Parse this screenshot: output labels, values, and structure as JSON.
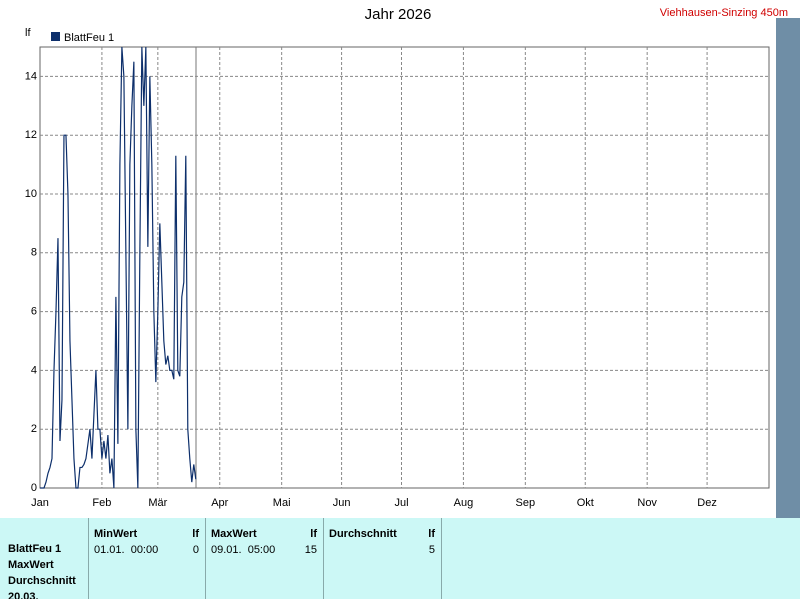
{
  "chart_data": {
    "type": "line",
    "title": "Jahr 2026",
    "station": "Viehhausen-Sinzing 450m",
    "y_label": "lf",
    "series": [
      {
        "name": "BlattFeu 1",
        "color": "#0d2f6b",
        "x": [
          0,
          1,
          2,
          3,
          4,
          5,
          6,
          7,
          8,
          9,
          10,
          11,
          12,
          13,
          14,
          15,
          16,
          17,
          18,
          19,
          20,
          21,
          22,
          23,
          24,
          25,
          26,
          27,
          28,
          29,
          30,
          31,
          32,
          33,
          34,
          35,
          36,
          37,
          38,
          39,
          40,
          41,
          42,
          43,
          44,
          45,
          46,
          47,
          48,
          49,
          50,
          51,
          52,
          53,
          54,
          55,
          56,
          57,
          58,
          59,
          60,
          61,
          62,
          63,
          64,
          65,
          66,
          67,
          68,
          69,
          70,
          71,
          72,
          73,
          74,
          75,
          76,
          77,
          78
        ],
        "values": [
          0,
          0,
          0,
          0.2,
          0.5,
          0.7,
          1,
          4,
          6,
          8.5,
          1.6,
          3,
          12,
          12,
          10,
          5,
          3,
          1,
          0,
          0,
          0.7,
          0.7,
          0.8,
          1,
          1.5,
          2,
          1,
          2.5,
          4,
          2,
          2,
          1,
          1.6,
          1,
          1.8,
          0.5,
          1,
          0,
          6.5,
          1.5,
          11,
          15,
          14,
          8,
          2,
          11,
          13,
          14.5,
          2,
          0,
          8,
          15,
          13,
          15,
          8.2,
          14,
          11,
          6,
          3.6,
          6,
          9,
          7,
          5,
          4.2,
          4.5,
          4,
          4,
          3.7,
          11.3,
          4,
          3.8,
          6.5,
          7,
          11.3,
          2,
          1,
          0.2,
          0.8,
          0.3
        ]
      }
    ],
    "xlim": [
      0,
      365
    ],
    "xticks": [
      {
        "value": 0,
        "label": "Jan"
      },
      {
        "value": 31,
        "label": "Feb"
      },
      {
        "value": 59,
        "label": "Mär"
      },
      {
        "value": 90,
        "label": "Apr"
      },
      {
        "value": 121,
        "label": "Mai"
      },
      {
        "value": 151,
        "label": "Jun"
      },
      {
        "value": 181,
        "label": "Jul"
      },
      {
        "value": 212,
        "label": "Aug"
      },
      {
        "value": 243,
        "label": "Sep"
      },
      {
        "value": 273,
        "label": "Okt"
      },
      {
        "value": 304,
        "label": "Nov"
      },
      {
        "value": 334,
        "label": "Dez"
      }
    ],
    "ylim": [
      0,
      15
    ],
    "yticks": [
      0,
      2,
      4,
      6,
      8,
      10,
      12,
      14
    ],
    "grid": true
  },
  "table": {
    "row_labels": [
      "BlattFeu 1",
      "MaxWert",
      "Durchschnitt",
      "20.03."
    ],
    "columns": [
      {
        "header": "MinWert",
        "unit": "lf",
        "time": "01.01.  00:00",
        "value": 0
      },
      {
        "header": "MaxWert",
        "unit": "lf",
        "time": "09.01.  05:00",
        "value": 15
      },
      {
        "header": "Durchschnitt",
        "unit": "lf",
        "value": 5
      }
    ]
  }
}
